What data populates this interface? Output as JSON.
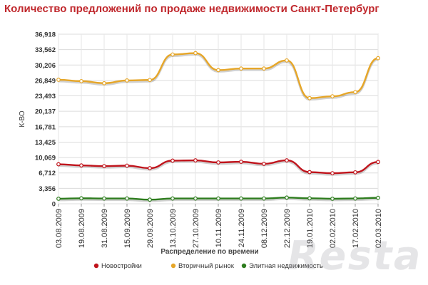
{
  "title": "Количество предложений по продаже недвижимости Санкт-Петербург",
  "watermark": "Resta",
  "chart_data": {
    "type": "line",
    "title": "Количество предложений по продаже недвижимости Санкт-Петербург",
    "xlabel": "Распределение по времени",
    "ylabel": "К-ВО",
    "ylim": [
      0,
      36918
    ],
    "yticks": [
      "0",
      "3,356",
      "6,712",
      "10,069",
      "13,425",
      "16,781",
      "20,137",
      "23,493",
      "26,849",
      "30,206",
      "33,562",
      "36,918"
    ],
    "categories": [
      "03.08.2009",
      "19.08.2009",
      "31.08.2009",
      "15.09.2009",
      "29.09.2009",
      "13.10.2009",
      "27.10.2009",
      "10.11.2009",
      "24.11.2009",
      "08.12.2009",
      "22.12.2009",
      "19.01.2010",
      "02.02.2010",
      "17.02.2010",
      "02.03.2010"
    ],
    "grid": true,
    "legend_position": "bottom",
    "series": [
      {
        "name": "Новостройки",
        "color": "#c0141c",
        "values": [
          8600,
          8350,
          8200,
          8300,
          7750,
          9400,
          9450,
          9000,
          9150,
          8700,
          9450,
          6900,
          6650,
          6850,
          9100
        ]
      },
      {
        "name": "Вторичный рынок",
        "color": "#e6a628",
        "values": [
          27000,
          26700,
          26250,
          26850,
          26950,
          32500,
          32800,
          29100,
          29450,
          29450,
          31200,
          23000,
          23400,
          24300,
          31700
        ]
      },
      {
        "name": "Элитная недвижимость",
        "color": "#2e7d1e",
        "values": [
          1100,
          1200,
          1150,
          1150,
          900,
          1150,
          1150,
          1150,
          1150,
          1150,
          1350,
          1200,
          1100,
          1150,
          1300
        ]
      }
    ]
  }
}
